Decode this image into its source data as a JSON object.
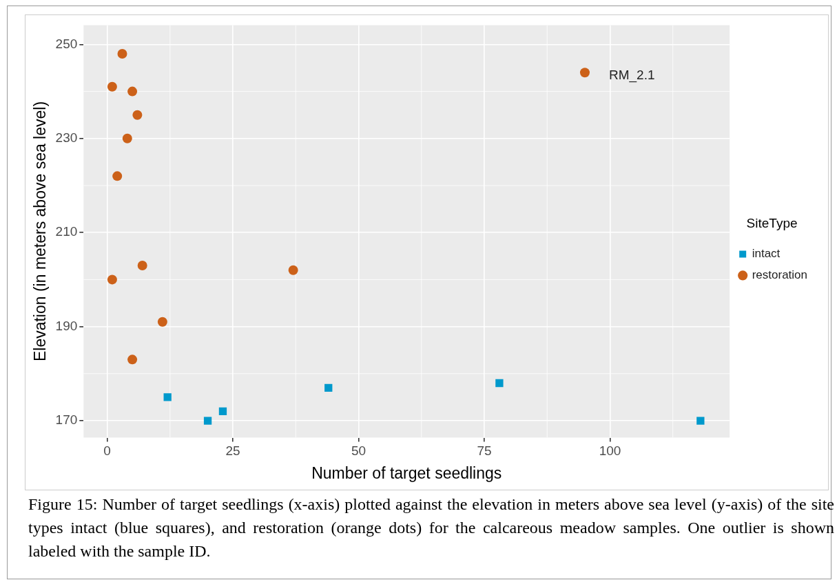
{
  "chart_data": {
    "type": "scatter",
    "xlabel": "Number of target seedlings",
    "ylabel": "Elevation (in meters above sea level)",
    "legend_title": "SiteType",
    "legend": "right",
    "grid": true,
    "xlim": [
      -4.7,
      123.8
    ],
    "xticks": [
      0,
      25,
      50,
      75,
      100
    ],
    "ylim": [
      166.4,
      254.1
    ],
    "yticks": [
      170,
      190,
      210,
      230,
      250
    ],
    "series": [
      {
        "name": "intact",
        "color": "#0099cc",
        "marker": "square",
        "x": [
          12,
          20,
          23,
          44,
          78,
          118
        ],
        "values": [
          175,
          170,
          172,
          177,
          178,
          170
        ]
      },
      {
        "name": "restoration",
        "color": "#cc6119",
        "marker": "circle",
        "x": [
          3,
          1,
          5,
          6,
          4,
          2,
          1,
          7,
          37,
          11,
          5,
          95
        ],
        "values": [
          248,
          241,
          240,
          235,
          230,
          222,
          200,
          203,
          202,
          191,
          183,
          244
        ]
      }
    ],
    "annotations": [
      {
        "text": "RM_2.1",
        "x": 95,
        "y": 244
      },
      "Figure 15: Number of target seedlings (x-axis) plotted against the elevation in meters above sea level (y-axis) of the site types intact (blue squares), and restoration (orange dots) for the calcareous meadow samples. One outlier is shown labeled with the sample ID."
    ]
  }
}
